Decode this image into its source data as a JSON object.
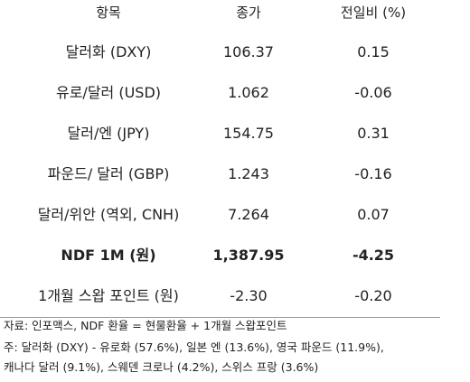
{
  "table": {
    "headers": {
      "item": "항목",
      "close": "종가",
      "change": "전일비 (%)"
    },
    "rows": [
      {
        "item": "달러화 (DXY)",
        "close": "106.37",
        "change": "0.15",
        "bold": false
      },
      {
        "item": "유로/달러 (USD)",
        "close": "1.062",
        "change": "-0.06",
        "bold": false
      },
      {
        "item": "달러/엔 (JPY)",
        "close": "154.75",
        "change": "0.31",
        "bold": false
      },
      {
        "item": "파운드/ 달러 (GBP)",
        "close": "1.243",
        "change": "-0.16",
        "bold": false
      },
      {
        "item": "달러/위안 (역외, CNH)",
        "close": "7.264",
        "change": "0.07",
        "bold": false
      },
      {
        "item": "NDF 1M (원)",
        "close": "1,387.95",
        "change": "-4.25",
        "bold": true
      },
      {
        "item": "1개월 스왑 포인트 (원)",
        "close": "-2.30",
        "change": "-0.20",
        "bold": false
      }
    ]
  },
  "notes": {
    "source": "자료: 인포맥스, NDF 환율 = 현물환율 + 1개월 스왑포인트",
    "footnote_line1": "주: 달러화 (DXY) - 유로화 (57.6%), 일본 엔 (13.6%), 영국 파운드 (11.9%),",
    "footnote_line2": "캐나다 달러 (9.1%), 스웨덴 크로나 (4.2%), 스위스 프랑 (3.6%)"
  }
}
